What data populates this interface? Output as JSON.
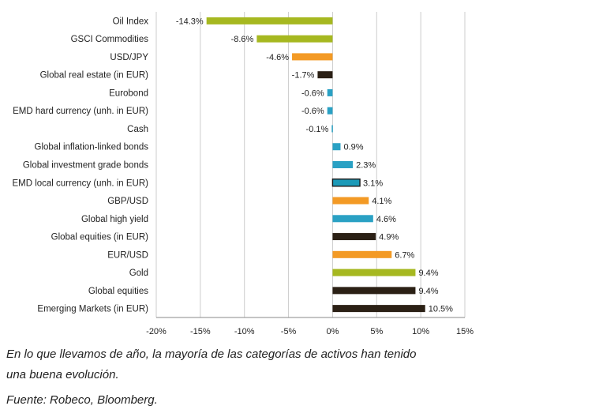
{
  "chart_data": {
    "type": "bar",
    "orientation": "horizontal",
    "categories": [
      "Oil Index",
      "GSCI Commodities",
      "USD/JPY",
      "Global real estate (in EUR)",
      "Eurobond",
      "EMD hard currency (unh. in EUR)",
      "Cash",
      "Global inflation-linked bonds",
      "Global investment grade bonds",
      "EMD local currency (unh. in EUR)",
      "GBP/USD",
      "Global high yield",
      "Global equities (in EUR)",
      "EUR/USD",
      "Gold",
      "Global equities",
      "Emerging Markets (in EUR)"
    ],
    "values": [
      -14.3,
      -8.6,
      -4.6,
      -1.7,
      -0.6,
      -0.6,
      -0.1,
      0.9,
      2.3,
      3.1,
      4.1,
      4.6,
      4.9,
      6.7,
      9.4,
      9.4,
      10.5
    ],
    "value_labels": [
      "-14.3%",
      "-8.6%",
      "-4.6%",
      "-1.7%",
      "-0.6%",
      "-0.6%",
      "-0.1%",
      "0.9%",
      "2.3%",
      "3.1%",
      "4.1%",
      "4.6%",
      "4.9%",
      "6.7%",
      "9.4%",
      "9.4%",
      "10.5%"
    ],
    "colors": [
      "#a6b820",
      "#a6b820",
      "#f39a25",
      "#2b2015",
      "#2aa1c4",
      "#2aa1c4",
      "#2aa1c4",
      "#2aa1c4",
      "#2aa1c4",
      "#1c9ab8",
      "#f39a25",
      "#2aa1c4",
      "#2b2015",
      "#f39a25",
      "#a6b820",
      "#2b2015",
      "#2b2015"
    ],
    "outlined": [
      false,
      false,
      false,
      false,
      false,
      false,
      false,
      false,
      false,
      true,
      false,
      false,
      false,
      false,
      false,
      false,
      false
    ],
    "xlim": [
      -20,
      15
    ],
    "xticks": [
      -20,
      -15,
      -10,
      -5,
      0,
      5,
      10,
      15
    ],
    "xtick_labels": [
      "-20%",
      "-15%",
      "-10%",
      "-5%",
      "0%",
      "5%",
      "10%",
      "15%"
    ],
    "grid": "vertical",
    "title": "",
    "xlabel": "",
    "ylabel": ""
  },
  "caption": {
    "line1": "En lo que llevamos de año, la mayoría de las categorías de activos han tenido",
    "line2": "una buena evolución.",
    "source": "Fuente: Robeco, Bloomberg."
  },
  "colors": {
    "gridline": "#cccccc",
    "axis": "#888888",
    "text": "#222222"
  }
}
